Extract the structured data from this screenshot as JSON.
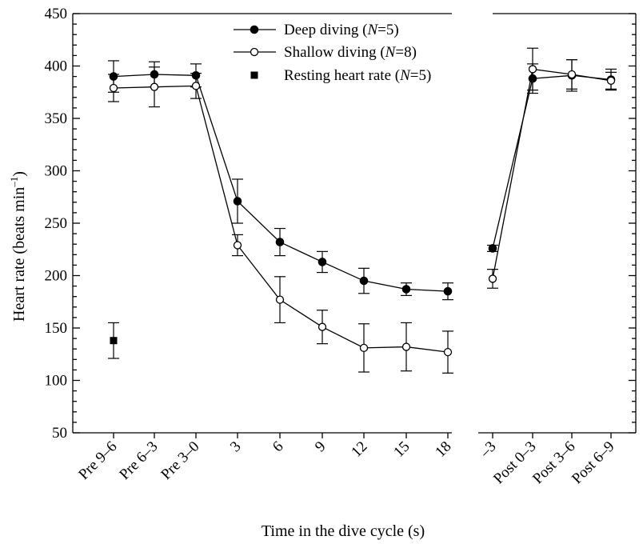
{
  "chart_data": {
    "type": "line",
    "xlabel": "Time in the dive cycle (s)",
    "ylabel_main": "Heart rate (beats min",
    "ylabel_exp": "–1",
    "ylabel_close": ")",
    "ylim": [
      50,
      450
    ],
    "yticks": [
      50,
      100,
      150,
      200,
      250,
      300,
      350,
      400,
      450
    ],
    "panels": [
      {
        "categories": [
          "Pre 9–6",
          "Pre 6–3",
          "Pre 3–0",
          "3",
          "6",
          "9",
          "12",
          "15",
          "18"
        ]
      },
      {
        "categories": [
          "–3",
          "Post 0–3",
          "Post 3–6",
          "Post 6–9"
        ]
      }
    ],
    "series": [
      {
        "name_main": "Deep diving (",
        "name_italic": "N",
        "name_rest": "=5)",
        "marker": "filled-circle",
        "segments": [
          {
            "panel": 0,
            "points": [
              {
                "x": "Pre 9–6",
                "y": 390,
                "err": 15
              },
              {
                "x": "Pre 6–3",
                "y": 392,
                "err": 12
              },
              {
                "x": "Pre 3–0",
                "y": 391,
                "err": 11
              },
              {
                "x": "3",
                "y": 271,
                "err": 21
              },
              {
                "x": "6",
                "y": 232,
                "err": 13
              },
              {
                "x": "9",
                "y": 213,
                "err": 10
              },
              {
                "x": "12",
                "y": 195,
                "err": 12
              },
              {
                "x": "15",
                "y": 187,
                "err": 6
              },
              {
                "x": "18",
                "y": 185,
                "err": 8
              }
            ]
          },
          {
            "panel": 1,
            "points": [
              {
                "x": "–3",
                "y": 226,
                "err": 3
              },
              {
                "x": "Post 0–3",
                "y": 388,
                "err": 14
              },
              {
                "x": "Post 3–6",
                "y": 391,
                "err": 15
              },
              {
                "x": "Post 6–9",
                "y": 387,
                "err": 10
              }
            ]
          }
        ]
      },
      {
        "name_main": "Shallow diving (",
        "name_italic": "N",
        "name_rest": "=8)",
        "marker": "open-circle",
        "segments": [
          {
            "panel": 0,
            "points": [
              {
                "x": "Pre 9–6",
                "y": 379,
                "err": 13
              },
              {
                "x": "Pre 6–3",
                "y": 380,
                "err": 19
              },
              {
                "x": "Pre 3–0",
                "y": 381,
                "err": 12
              },
              {
                "x": "3",
                "y": 229,
                "err": 10
              },
              {
                "x": "6",
                "y": 177,
                "err": 22
              },
              {
                "x": "9",
                "y": 151,
                "err": 16
              },
              {
                "x": "12",
                "y": 131,
                "err": 23
              },
              {
                "x": "15",
                "y": 132,
                "err": 23
              },
              {
                "x": "18",
                "y": 127,
                "err": 20
              }
            ]
          },
          {
            "panel": 1,
            "points": [
              {
                "x": "–3",
                "y": 197,
                "err": 9
              },
              {
                "x": "Post 0–3",
                "y": 397,
                "err": 20
              },
              {
                "x": "Post 3–6",
                "y": 392,
                "err": 14
              },
              {
                "x": "Post 6–9",
                "y": 386,
                "err": 8
              }
            ]
          }
        ]
      },
      {
        "name_main": "Resting heart rate (",
        "name_italic": "N",
        "name_rest": "=5)",
        "marker": "filled-square",
        "segments": [
          {
            "panel": 0,
            "points": [
              {
                "x": "Pre 9–6",
                "y": 138,
                "err": 17
              }
            ]
          }
        ]
      }
    ]
  }
}
